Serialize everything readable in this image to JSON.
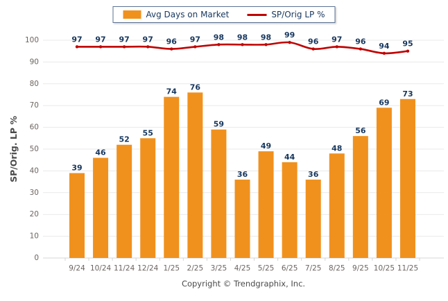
{
  "legend": {
    "items": [
      {
        "label": "Avg Days on Market",
        "marker": "bar-swatch",
        "color": "#F0911E"
      },
      {
        "label": "SP/Orig LP %",
        "marker": "line-swatch",
        "color": "#C00000"
      }
    ]
  },
  "footer": {
    "text": "Copyright © Trendgraphix, Inc."
  },
  "chart_data": {
    "type": "combo",
    "categories": [
      "9/24",
      "10/24",
      "11/24",
      "12/24",
      "1/25",
      "2/25",
      "3/25",
      "4/25",
      "5/25",
      "6/25",
      "7/25",
      "8/25",
      "9/25",
      "10/25",
      "11/25"
    ],
    "series": [
      {
        "name": "Avg Days on Market",
        "type": "bar",
        "color": "#F0911E",
        "values": [
          39,
          46,
          52,
          55,
          74,
          76,
          59,
          36,
          49,
          44,
          36,
          48,
          56,
          69,
          73
        ]
      },
      {
        "name": "SP/Orig LP %",
        "type": "line",
        "color": "#C00000",
        "values": [
          97,
          97,
          97,
          97,
          96,
          97,
          98,
          98,
          98,
          99,
          96,
          97,
          96,
          94,
          95
        ]
      }
    ],
    "ylabel": "SP/Orig. LP %",
    "ylim": [
      0,
      100
    ],
    "ytick_step": 10,
    "grid": "horizontal",
    "legend_position": "top-center",
    "data_label_color": "#17375E",
    "axis_text_color": "#6B6460",
    "gridline_color": "#E9E9E9",
    "axisline_color": "#D4D4D4",
    "ylabel_color": "#4A4A4A"
  }
}
